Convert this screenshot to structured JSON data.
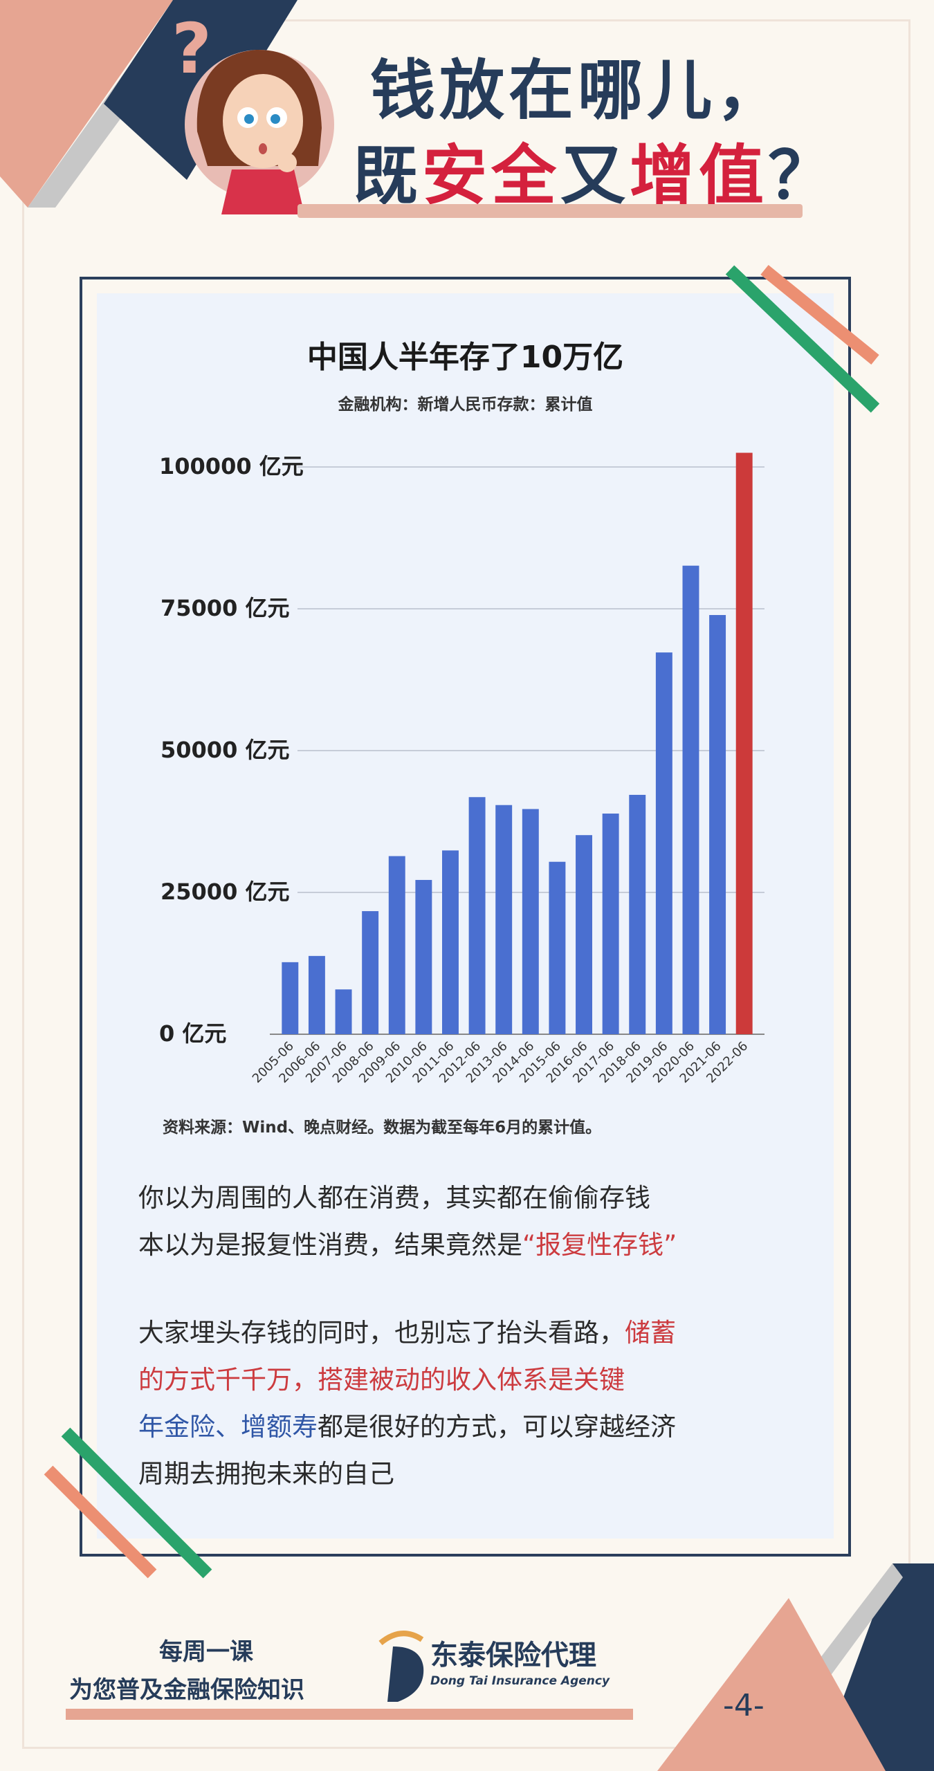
{
  "header": {
    "title_line1": "钱放在哪儿，",
    "title_line2_parts": [
      "既",
      "安全",
      "又",
      "增值",
      "？"
    ]
  },
  "chart_data": {
    "type": "bar",
    "title": "中国人半年存了10万亿",
    "subtitle": "金融机构：新增人民币存款：累计值",
    "categories": [
      "2005-06",
      "2006-06",
      "2007-06",
      "2008-06",
      "2009-06",
      "2010-06",
      "2011-06",
      "2012-06",
      "2013-06",
      "2014-06",
      "2015-06",
      "2016-06",
      "2017-06",
      "2018-06",
      "2019-06",
      "2020-06",
      "2021-06",
      "2022-06"
    ],
    "values": [
      12700,
      13800,
      7900,
      21700,
      31400,
      27200,
      32400,
      41800,
      40400,
      39700,
      30400,
      35100,
      38900,
      42200,
      67300,
      82600,
      73900,
      102500
    ],
    "ylim": [
      0,
      100000
    ],
    "yticks": [
      "0 亿元",
      "25000 亿元",
      "50000 亿元",
      "75000 亿元",
      "100000 亿元"
    ],
    "grid": true,
    "bar_color": "#4a6fd0",
    "highlight_color": "#cc3a3a",
    "highlight_index": 17,
    "source": "资料来源：Wind、晚点财经。数据为截至每年6月的累计值。"
  },
  "body": {
    "p1_line1": "你以为周围的人都在消费，其实都在偷偷存钱",
    "p1_line2_a": "本以为是报复性消费，结果竟然是",
    "p1_line2_b": "“报复性存钱”",
    "p2_line1_a": "大家埋头存钱的同时，也别忘了抬头看路，",
    "p2_line1_b": "储蓄",
    "p2_line2": "的方式千千万，搭建被动的收入体系是关键",
    "p2_line3_a": "年金险、增额寿",
    "p2_line3_b": "都是很好的方式，可以穿越经济",
    "p2_line4": "周期去拥抱未来的自己"
  },
  "footer": {
    "slogan_line1": "每周一课",
    "slogan_line2": "为您普及金融保险知识",
    "brand_cn": "东泰保险代理",
    "brand_en": "Dong Tai Insurance Agency",
    "page_number": "-4-"
  },
  "colors": {
    "navy": "#263c5a",
    "salmon": "#e6a592",
    "grey": "#c0c0c0",
    "green": "#2aa36b",
    "red": "#d4213d"
  }
}
